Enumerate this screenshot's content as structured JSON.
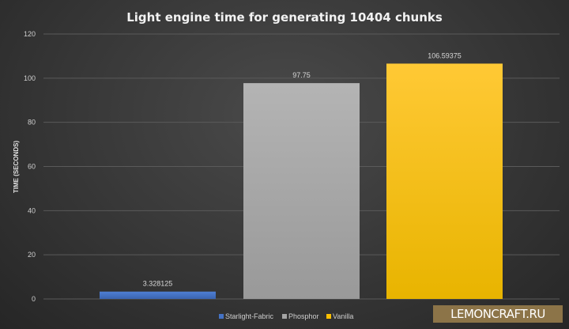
{
  "chart_data": {
    "type": "bar",
    "title": "Light engine time for generating 10404 chunks",
    "xlabel": "",
    "ylabel": "TIME (SECONDS)",
    "ylim": [
      0,
      120
    ],
    "yticks": [
      0,
      20,
      40,
      60,
      80,
      100,
      120
    ],
    "grid": true,
    "legend_position": "bottom",
    "series": [
      {
        "name": "Starlight-Fabric",
        "values": [
          3.328125
        ],
        "label": "3.328125",
        "color": "#4472c4"
      },
      {
        "name": "Phosphor",
        "values": [
          97.75
        ],
        "label": "97.75",
        "color": "#a5a5a5"
      },
      {
        "name": "Vanilla",
        "values": [
          106.59375
        ],
        "label": "106.59375",
        "color": "#ffc000"
      }
    ]
  },
  "watermark": "LEMONCRAFT.RU"
}
